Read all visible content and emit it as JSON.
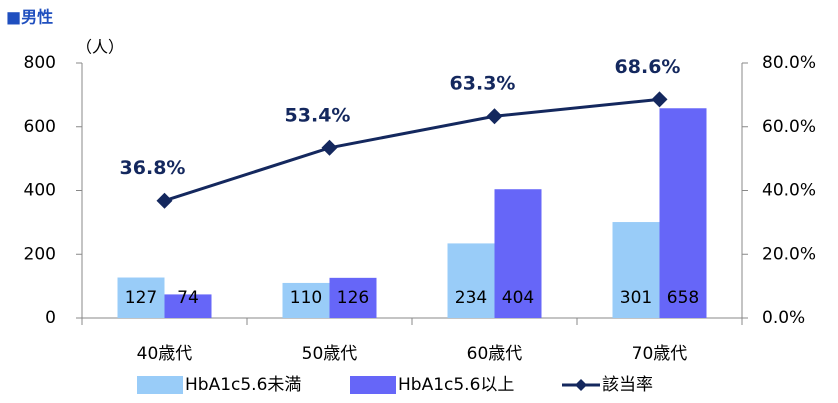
{
  "chart_data": {
    "type": "bar-line",
    "title": "■男性",
    "y_label": "（人）",
    "categories": [
      "40歳代",
      "50歳代",
      "60歳代",
      "70歳代"
    ],
    "series": [
      {
        "name": "HbA1c5.6未満",
        "color": "#99ccf8",
        "type": "bar",
        "values": [
          127,
          110,
          234,
          301
        ]
      },
      {
        "name": "HbA1c5.6以上",
        "color": "#6666f8",
        "type": "bar",
        "values": [
          74,
          126,
          404,
          658
        ]
      },
      {
        "name": "該当率",
        "color": "#14285e",
        "type": "line",
        "axis": "y2",
        "values": [
          36.8,
          53.4,
          63.3,
          68.6
        ],
        "value_labels": [
          "36.8%",
          "53.4%",
          "63.3%",
          "68.6%"
        ]
      }
    ],
    "ylim": [
      0,
      800
    ],
    "yticks": [
      0,
      200,
      400,
      600,
      800
    ],
    "y2lim": [
      0,
      80
    ],
    "y2ticks": [
      {
        "value": 0,
        "label": "0.0%"
      },
      {
        "value": 20,
        "label": "20.0%"
      },
      {
        "value": 40,
        "label": "40.0%"
      },
      {
        "value": 60,
        "label": "60.0%"
      },
      {
        "value": 80,
        "label": "80.0%"
      }
    ],
    "grid": false
  }
}
